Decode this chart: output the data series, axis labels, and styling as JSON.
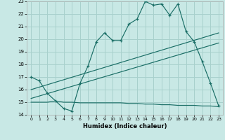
{
  "xlabel": "Humidex (Indice chaleur)",
  "bg_color": "#c8e8e5",
  "grid_color": "#a8d0cc",
  "line_color": "#1a6e66",
  "xlim_min": -0.5,
  "xlim_max": 23.5,
  "ylim_min": 14,
  "ylim_max": 23,
  "xticks": [
    0,
    1,
    2,
    3,
    4,
    5,
    6,
    7,
    8,
    9,
    10,
    11,
    12,
    13,
    14,
    15,
    16,
    17,
    18,
    19,
    20,
    21,
    22,
    23
  ],
  "yticks": [
    14,
    15,
    16,
    17,
    18,
    19,
    20,
    21,
    22,
    23
  ],
  "line1_x": [
    0,
    1,
    2,
    3,
    4,
    5,
    6,
    7,
    8,
    9,
    10,
    11,
    12,
    13,
    14,
    15,
    16,
    17,
    18,
    19,
    20,
    21,
    22,
    23
  ],
  "line1_y": [
    17.0,
    16.7,
    15.7,
    15.1,
    14.5,
    14.3,
    16.5,
    17.9,
    19.8,
    20.5,
    19.9,
    19.9,
    21.2,
    21.6,
    23.0,
    22.7,
    22.8,
    21.9,
    22.8,
    20.6,
    19.8,
    18.2,
    16.5,
    14.7
  ],
  "line2_x": [
    0,
    1,
    2,
    3,
    4,
    5,
    6,
    7,
    8,
    9,
    10,
    11,
    12,
    13,
    14,
    15,
    16,
    17,
    18,
    19,
    20,
    21,
    22,
    23
  ],
  "line2_y": [
    15.0,
    15.0,
    15.0,
    15.1,
    15.0,
    15.0,
    14.95,
    14.95,
    14.95,
    14.95,
    14.95,
    14.95,
    14.9,
    14.9,
    14.85,
    14.85,
    14.8,
    14.8,
    14.75,
    14.75,
    14.75,
    14.7,
    14.7,
    14.65
  ],
  "line3_x": [
    0,
    23
  ],
  "line3_y": [
    16.0,
    20.5
  ],
  "line4_x": [
    0,
    23
  ],
  "line4_y": [
    15.3,
    19.7
  ]
}
